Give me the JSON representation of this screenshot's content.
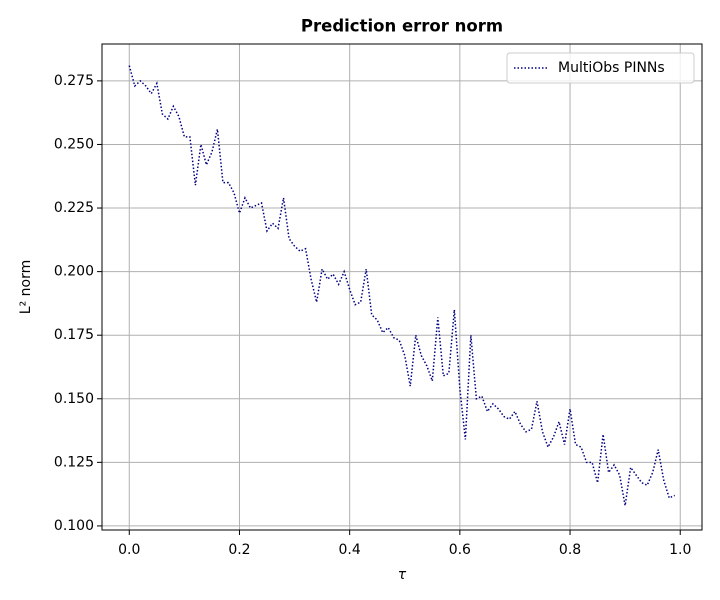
{
  "chart_data": {
    "type": "line",
    "title": "Prediction error norm",
    "xlabel": "τ",
    "ylabel": "L² norm",
    "x": [
      0.0,
      0.01,
      0.02,
      0.03,
      0.04,
      0.05,
      0.06,
      0.07,
      0.08,
      0.09,
      0.1,
      0.11,
      0.12,
      0.13,
      0.14,
      0.15,
      0.16,
      0.17,
      0.18,
      0.19,
      0.2,
      0.21,
      0.22,
      0.23,
      0.24,
      0.25,
      0.26,
      0.27,
      0.28,
      0.29,
      0.3,
      0.31,
      0.32,
      0.33,
      0.34,
      0.35,
      0.36,
      0.37,
      0.38,
      0.39,
      0.4,
      0.41,
      0.42,
      0.43,
      0.44,
      0.45,
      0.46,
      0.47,
      0.48,
      0.49,
      0.5,
      0.51,
      0.52,
      0.53,
      0.54,
      0.55,
      0.56,
      0.57,
      0.58,
      0.59,
      0.6,
      0.61,
      0.62,
      0.63,
      0.64,
      0.65,
      0.66,
      0.67,
      0.68,
      0.69,
      0.7,
      0.71,
      0.72,
      0.73,
      0.74,
      0.75,
      0.76,
      0.77,
      0.78,
      0.79,
      0.8,
      0.81,
      0.82,
      0.83,
      0.84,
      0.85,
      0.86,
      0.87,
      0.88,
      0.89,
      0.9,
      0.91,
      0.92,
      0.93,
      0.94,
      0.95,
      0.96,
      0.97,
      0.98,
      0.99
    ],
    "series": [
      {
        "name": "MultiObs PINNs",
        "color": "#00007f",
        "linestyle": "dotted",
        "values": [
          0.281,
          0.273,
          0.275,
          0.273,
          0.27,
          0.274,
          0.262,
          0.26,
          0.265,
          0.261,
          0.253,
          0.253,
          0.234,
          0.25,
          0.242,
          0.247,
          0.256,
          0.235,
          0.235,
          0.231,
          0.223,
          0.229,
          0.225,
          0.226,
          0.227,
          0.216,
          0.219,
          0.217,
          0.229,
          0.213,
          0.21,
          0.208,
          0.209,
          0.197,
          0.188,
          0.201,
          0.197,
          0.199,
          0.195,
          0.2,
          0.193,
          0.187,
          0.188,
          0.201,
          0.183,
          0.181,
          0.176,
          0.178,
          0.174,
          0.173,
          0.167,
          0.155,
          0.175,
          0.167,
          0.163,
          0.157,
          0.182,
          0.159,
          0.16,
          0.185,
          0.154,
          0.134,
          0.175,
          0.15,
          0.151,
          0.145,
          0.148,
          0.146,
          0.143,
          0.142,
          0.145,
          0.14,
          0.137,
          0.138,
          0.149,
          0.137,
          0.131,
          0.135,
          0.141,
          0.132,
          0.146,
          0.132,
          0.131,
          0.125,
          0.125,
          0.117,
          0.136,
          0.121,
          0.124,
          0.12,
          0.108,
          0.123,
          0.12,
          0.117,
          0.116,
          0.121,
          0.13,
          0.118,
          0.111,
          0.112
        ]
      }
    ],
    "xlim": [
      -0.0495,
      1.0395
    ],
    "xticks": [
      {
        "value": 0,
        "label": "0.0"
      },
      {
        "value": 0.2,
        "label": "0.2"
      },
      {
        "value": 0.4,
        "label": "0.4"
      },
      {
        "value": 0.6,
        "label": "0.6"
      },
      {
        "value": 0.8,
        "label": "0.8"
      },
      {
        "value": 1,
        "label": "1.0"
      }
    ],
    "ylim": [
      0.0984,
      0.2895
    ],
    "yticks": [
      {
        "value": 0.1,
        "label": "0.100"
      },
      {
        "value": 0.125,
        "label": "0.125"
      },
      {
        "value": 0.15,
        "label": "0.150"
      },
      {
        "value": 0.175,
        "label": "0.175"
      },
      {
        "value": 0.2,
        "label": "0.200"
      },
      {
        "value": 0.225,
        "label": "0.225"
      },
      {
        "value": 0.25,
        "label": "0.250"
      },
      {
        "value": 0.275,
        "label": "0.275"
      }
    ],
    "grid": true,
    "legend": "upper right"
  }
}
